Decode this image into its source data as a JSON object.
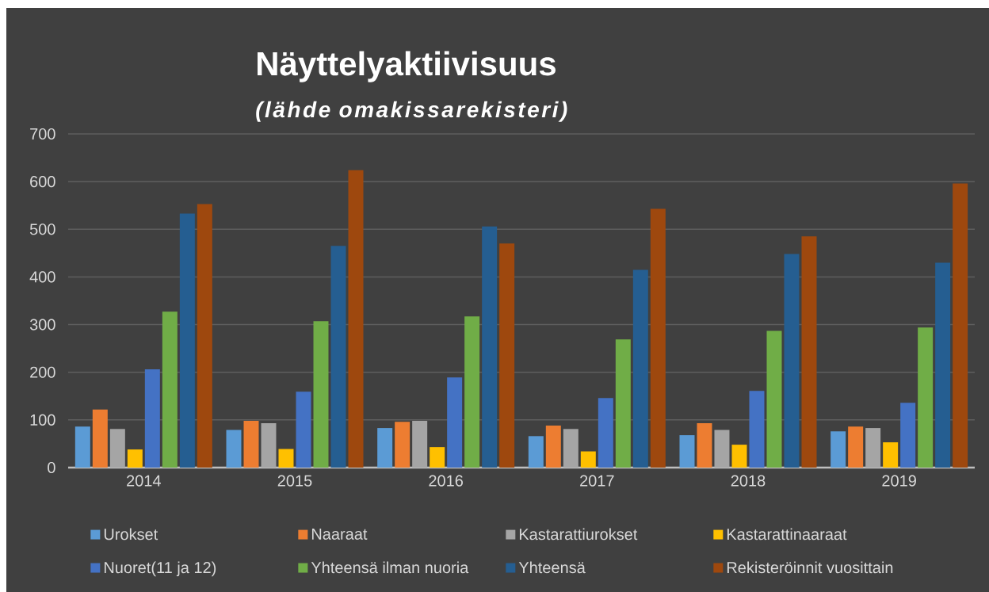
{
  "chart_data": {
    "type": "bar",
    "title": "Näyttelyaktiivisuus",
    "subtitle": "(lähde omakissarekisteri)",
    "categories": [
      "2014",
      "2015",
      "2016",
      "2017",
      "2018",
      "2019"
    ],
    "series": [
      {
        "name": "Urokset",
        "color": "#5b9bd5",
        "values": [
          86,
          79,
          83,
          66,
          68,
          76
        ]
      },
      {
        "name": "Naaraat",
        "color": "#ed7d31",
        "values": [
          122,
          98,
          96,
          88,
          93,
          86
        ]
      },
      {
        "name": "Kastarattiurokset",
        "color": "#a5a5a5",
        "values": [
          81,
          93,
          98,
          81,
          79,
          83
        ]
      },
      {
        "name": "Kastarattinaaraat",
        "color": "#ffc000",
        "values": [
          38,
          39,
          43,
          34,
          48,
          53
        ]
      },
      {
        "name": "Nuoret(11 ja 12)",
        "color": "#4472c4",
        "values": [
          206,
          159,
          189,
          146,
          161,
          136
        ]
      },
      {
        "name": "Yhteensä ilman nuoria",
        "color": "#70ad47",
        "values": [
          327,
          307,
          317,
          269,
          287,
          294
        ]
      },
      {
        "name": "Yhteensä",
        "color": "#255e91",
        "values": [
          533,
          465,
          506,
          415,
          448,
          430
        ]
      },
      {
        "name": "Rekisteröinnit vuosittain",
        "color": "#9e480e",
        "values": [
          553,
          624,
          470,
          543,
          485,
          596
        ]
      }
    ],
    "ylim": [
      0,
      700
    ],
    "yticks": [
      0,
      100,
      200,
      300,
      400,
      500,
      600,
      700
    ],
    "grid": "y",
    "legend": "bottom"
  }
}
